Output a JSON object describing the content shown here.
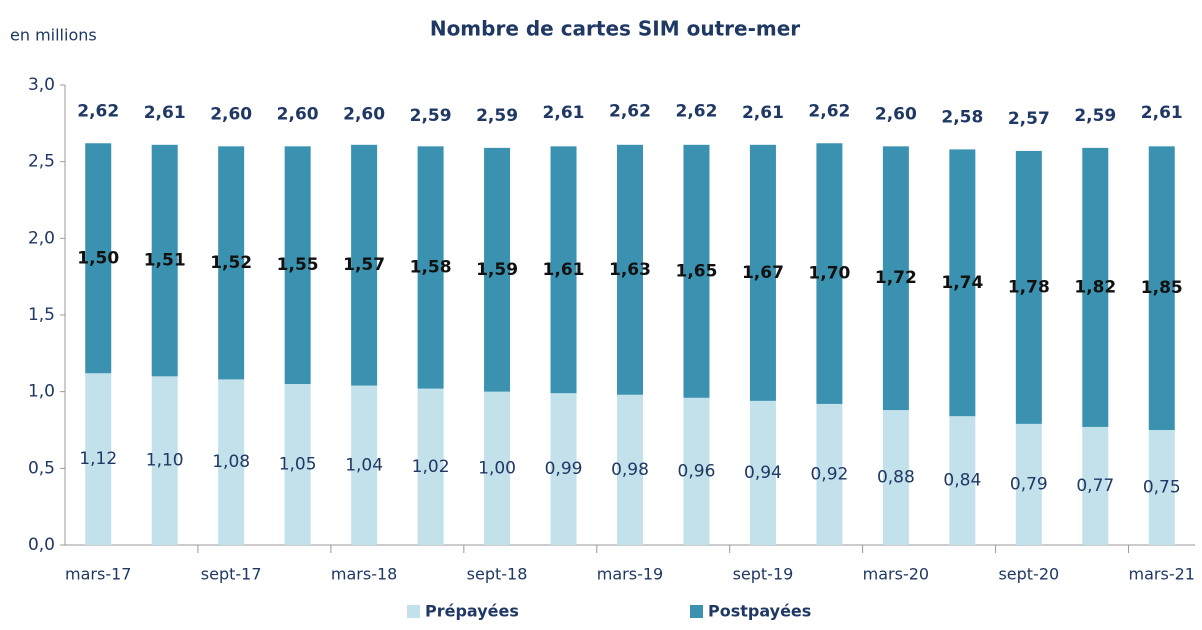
{
  "chart_data": {
    "type": "stacked_bar",
    "title": "Nombre de cartes SIM outre-mer",
    "y_axis_label": "en millions",
    "categories": [
      "mars-17",
      null,
      "sept-17",
      null,
      "mars-18",
      null,
      "sept-18",
      null,
      "mars-19",
      null,
      "sept-19",
      null,
      "mars-20",
      null,
      "sept-20",
      null,
      "mars-21"
    ],
    "series": [
      {
        "name": "Prépayées",
        "color": "#c2e1eb",
        "values": [
          1.12,
          1.1,
          1.08,
          1.05,
          1.04,
          1.02,
          1.0,
          0.99,
          0.98,
          0.96,
          0.94,
          0.92,
          0.88,
          0.84,
          0.79,
          0.77,
          0.75
        ],
        "value_labels": [
          "1,12",
          "1,10",
          "1,08",
          "1,05",
          "1,04",
          "1,02",
          "1,00",
          "0,99",
          "0,98",
          "0,96",
          "0,94",
          "0,92",
          "0,88",
          "0,84",
          "0,79",
          "0,77",
          "0,75"
        ]
      },
      {
        "name": "Postpayées",
        "color": "#3a92b0",
        "values": [
          1.5,
          1.51,
          1.52,
          1.55,
          1.57,
          1.58,
          1.59,
          1.61,
          1.63,
          1.65,
          1.67,
          1.7,
          1.72,
          1.74,
          1.78,
          1.82,
          1.85
        ],
        "value_labels": [
          "1,50",
          "1,51",
          "1,52",
          "1,55",
          "1,57",
          "1,58",
          "1,59",
          "1,61",
          "1,63",
          "1,65",
          "1,67",
          "1,70",
          "1,72",
          "1,74",
          "1,78",
          "1,82",
          "1,85"
        ]
      }
    ],
    "totals": [
      2.62,
      2.61,
      2.6,
      2.6,
      2.6,
      2.59,
      2.59,
      2.61,
      2.62,
      2.62,
      2.61,
      2.62,
      2.6,
      2.58,
      2.57,
      2.59,
      2.61
    ],
    "total_labels": [
      "2,62",
      "2,61",
      "2,60",
      "2,60",
      "2,60",
      "2,59",
      "2,59",
      "2,61",
      "2,62",
      "2,62",
      "2,61",
      "2,62",
      "2,60",
      "2,58",
      "2,57",
      "2,59",
      "2,61"
    ],
    "ylim": [
      0,
      3
    ],
    "yticks": [
      {
        "value": 0,
        "label": "0,0"
      },
      {
        "value": 0.5,
        "label": "0,5"
      },
      {
        "value": 1,
        "label": "1,0"
      },
      {
        "value": 1.5,
        "label": "1,5"
      },
      {
        "value": 2,
        "label": "2,0"
      },
      {
        "value": 2.5,
        "label": "2,5"
      },
      {
        "value": 3,
        "label": "3,0"
      }
    ],
    "legend": "bottom"
  }
}
